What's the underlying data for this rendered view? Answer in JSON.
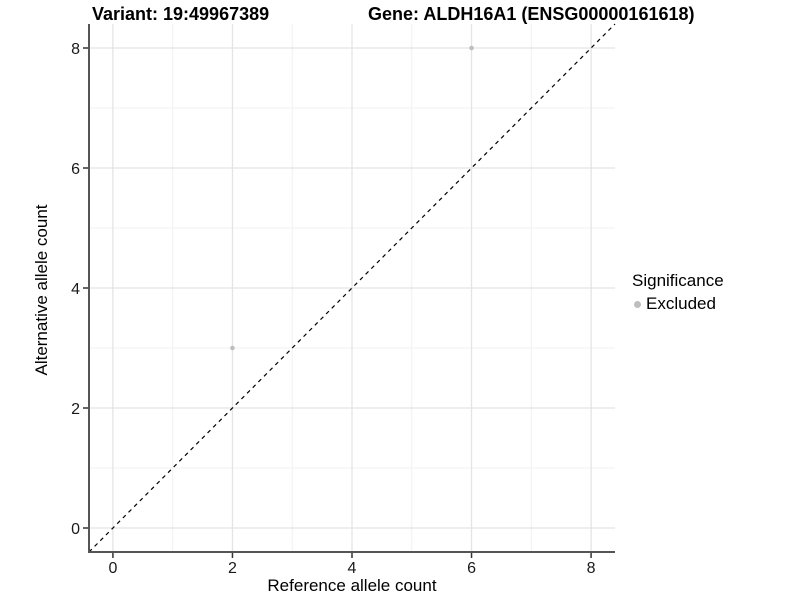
{
  "header": {
    "variant_title": "Variant: 19:49967389",
    "gene_title": "Gene: ALDH16A1 (ENSG00000161618)"
  },
  "chart_data": {
    "type": "scatter",
    "title": "Variant: 19:49967389    Gene: ALDH16A1 (ENSG00000161618)",
    "xlabel": "Reference allele count",
    "ylabel": "Alternative allele count",
    "xlim": [
      -0.4,
      8.4
    ],
    "ylim": [
      -0.4,
      8.4
    ],
    "x_ticks": [
      0,
      2,
      4,
      6,
      8
    ],
    "y_ticks": [
      0,
      2,
      4,
      6,
      8
    ],
    "x_minor_ticks": [
      1,
      3,
      5,
      7
    ],
    "y_minor_ticks": [
      1,
      3,
      5,
      7
    ],
    "grid": true,
    "legend_position": "right",
    "series": [
      {
        "name": "Excluded",
        "color": "#bebebe",
        "points": [
          {
            "x": 2,
            "y": 3
          },
          {
            "x": 6,
            "y": 8
          }
        ]
      }
    ],
    "reference_line": {
      "kind": "identity",
      "style": "dashed",
      "color": "#000000"
    },
    "legend": {
      "title": "Significance",
      "items": [
        {
          "label": "Excluded",
          "color": "#bebebe"
        }
      ]
    }
  },
  "colors": {
    "grid_major": "#e4e4e4",
    "grid_minor": "#f1f1f1",
    "axis_line": "#555555",
    "tick_mark": "#333333",
    "tick_label": "#1a1a1a",
    "point": "#bebebe"
  }
}
